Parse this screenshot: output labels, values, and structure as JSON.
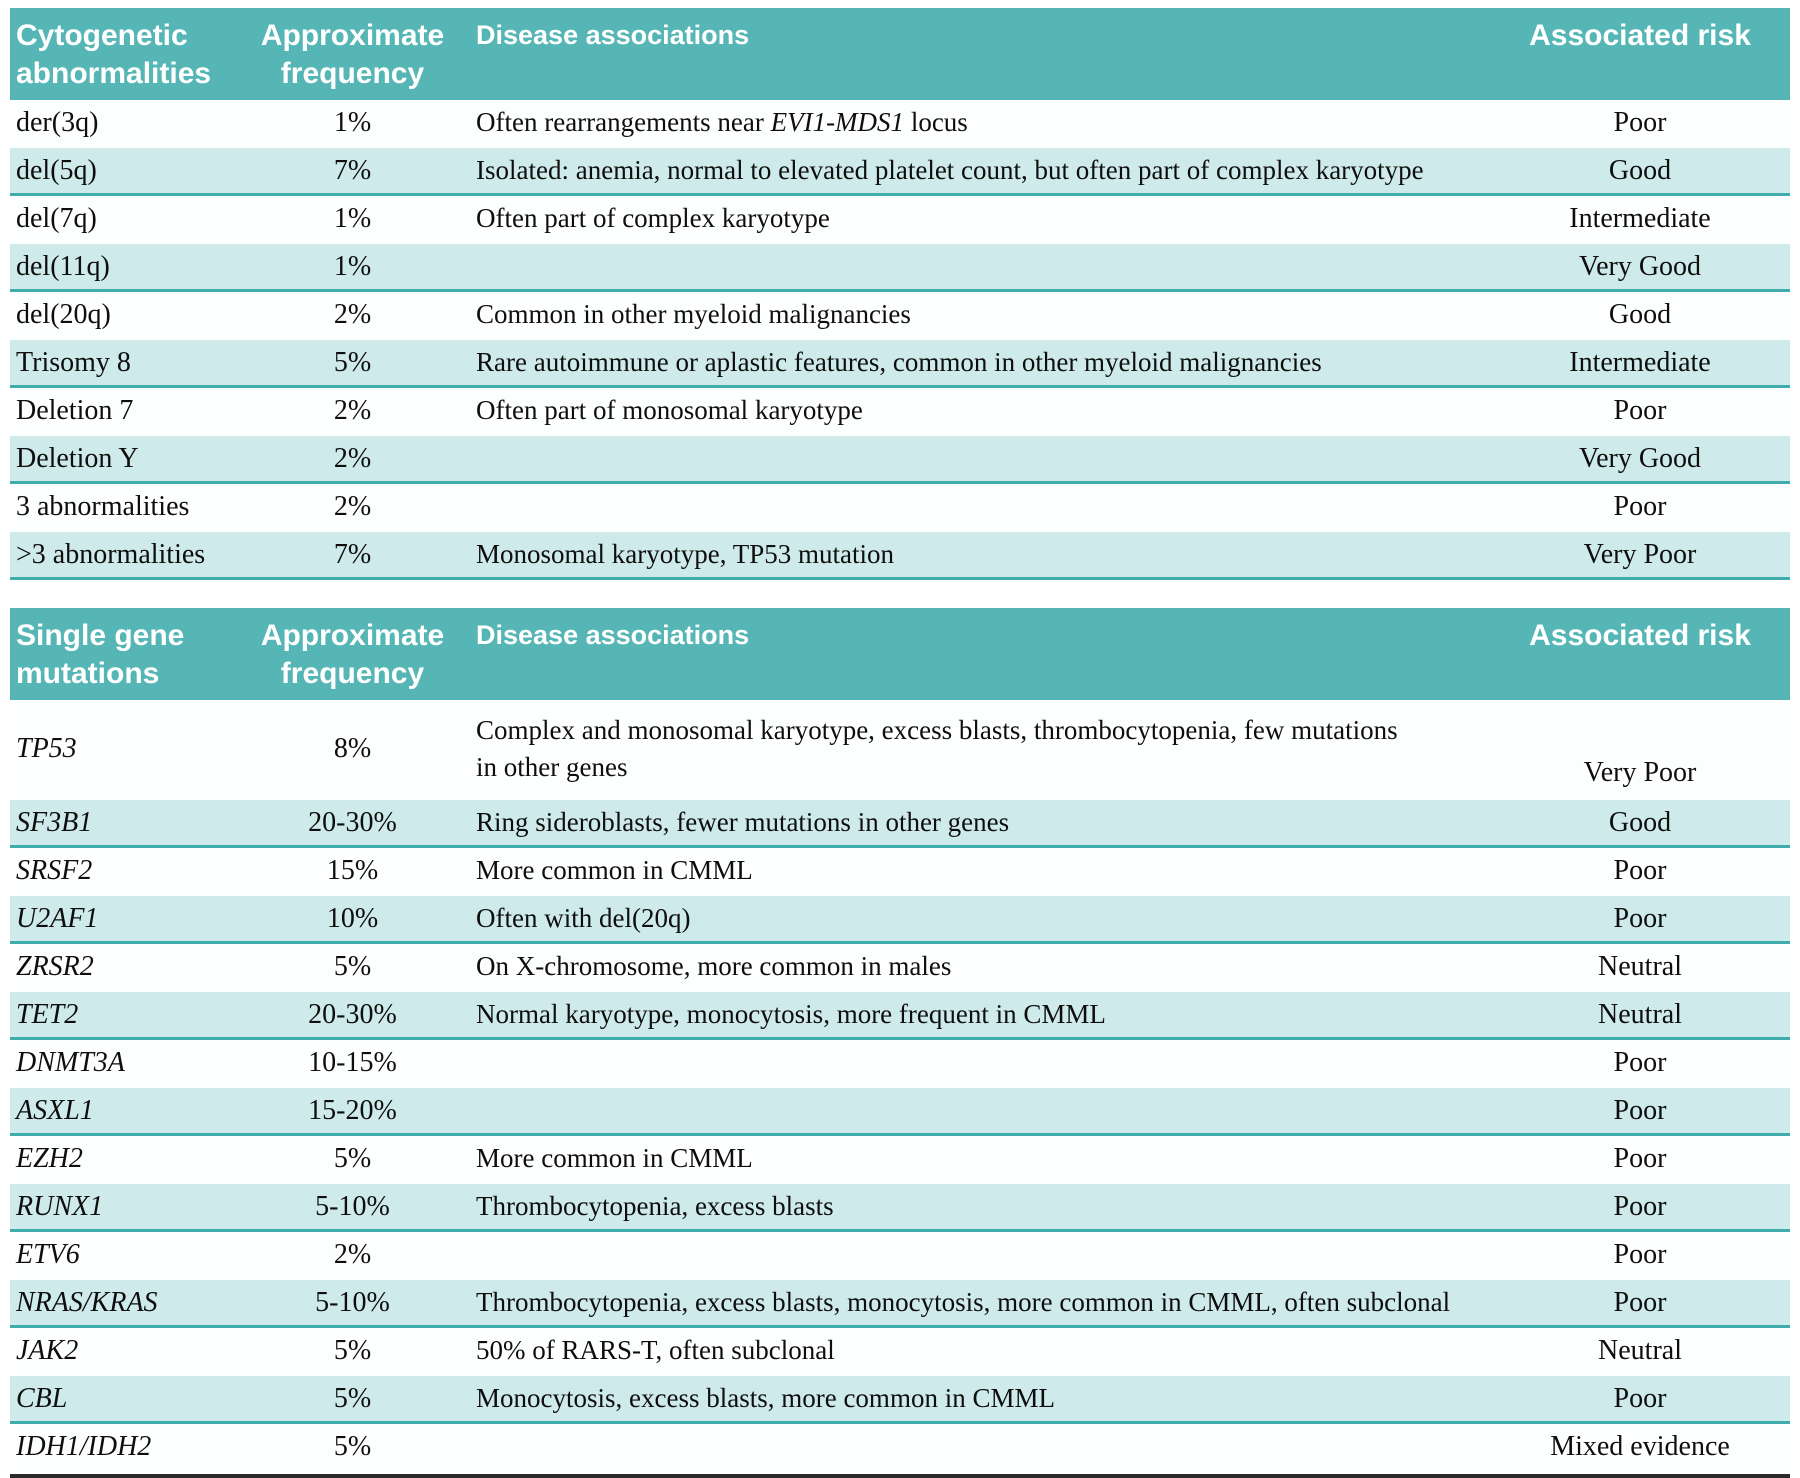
{
  "colors": {
    "header_bg": "#56b6b6",
    "header_text": "#ffffff",
    "shaded_row_bg": "#cfeaea",
    "row_divider": "#41acac",
    "body_text": "#0e0e0e",
    "bottom_rule": "#2b2b2b"
  },
  "tables": [
    {
      "id": "cytogenetic-abnormalities",
      "headers": {
        "col1": "Cytogenetic\nabnormalities",
        "col2": "Approximate\nfrequency",
        "col3": "Disease associations",
        "col4": "Associated risk"
      },
      "name_style": "normal",
      "rows": [
        {
          "name": "der(3q)",
          "frequency": "1%",
          "association": [
            {
              "t": "Often rearrangements near "
            },
            {
              "t": "EVI1-MDS1",
              "i": true
            },
            {
              "t": " locus"
            }
          ],
          "risk": "Poor"
        },
        {
          "name": "del(5q)",
          "frequency": "7%",
          "association": "Isolated: anemia, normal to elevated platelet count, but often part of complex karyotype",
          "risk": "Good"
        },
        {
          "name": "del(7q)",
          "frequency": "1%",
          "association": "Often part of complex karyotype",
          "risk": "Intermediate"
        },
        {
          "name": "del(11q)",
          "frequency": "1%",
          "association": "",
          "risk": "Very Good"
        },
        {
          "name": "del(20q)",
          "frequency": "2%",
          "association": "Common in other myeloid malignancies",
          "risk": "Good"
        },
        {
          "name": "Trisomy 8",
          "frequency": "5%",
          "association": "Rare autoimmune or aplastic features, common in other myeloid malignancies",
          "risk": "Intermediate"
        },
        {
          "name": "Deletion 7",
          "frequency": "2%",
          "association": "Often part of monosomal karyotype",
          "risk": "Poor"
        },
        {
          "name": "Deletion Y",
          "frequency": "2%",
          "association": "",
          "risk": "Very Good"
        },
        {
          "name": "3 abnormalities",
          "frequency": "2%",
          "association": "",
          "risk": "Poor"
        },
        {
          "name": ">3 abnormalities",
          "frequency": "7%",
          "association": "Monosomal karyotype, TP53 mutation",
          "risk": "Very Poor"
        }
      ]
    },
    {
      "id": "single-gene-mutations",
      "headers": {
        "col1": "Single gene\nmutations",
        "col2": "Approximate\nfrequency",
        "col3": "Disease associations",
        "col4": "Associated risk"
      },
      "name_style": "italic",
      "rows": [
        {
          "name": "TP53",
          "frequency": "8%",
          "association": "Complex and monosomal karyotype, excess blasts, thrombocytopenia, few mutations\nin other genes",
          "risk": "Very Poor"
        },
        {
          "name": "SF3B1",
          "frequency": "20-30%",
          "association": "Ring sideroblasts, fewer mutations in other genes",
          "risk": "Good"
        },
        {
          "name": "SRSF2",
          "frequency": "15%",
          "association": "More common in CMML",
          "risk": "Poor"
        },
        {
          "name": "U2AF1",
          "frequency": "10%",
          "association": "Often with del(20q)",
          "risk": "Poor"
        },
        {
          "name": "ZRSR2",
          "frequency": "5%",
          "association": "On X-chromosome, more common in males",
          "risk": "Neutral"
        },
        {
          "name": "TET2",
          "frequency": "20-30%",
          "association": "Normal karyotype, monocytosis, more frequent in CMML",
          "risk": "Neutral"
        },
        {
          "name": "DNMT3A",
          "frequency": "10-15%",
          "association": "",
          "risk": "Poor"
        },
        {
          "name": "ASXL1",
          "frequency": "15-20%",
          "association": "",
          "risk": "Poor"
        },
        {
          "name": "EZH2",
          "frequency": "5%",
          "association": "More common in CMML",
          "risk": "Poor"
        },
        {
          "name": "RUNX1",
          "frequency": "5-10%",
          "association": "Thrombocytopenia, excess blasts",
          "risk": "Poor"
        },
        {
          "name": "ETV6",
          "frequency": "2%",
          "association": "",
          "risk": "Poor"
        },
        {
          "name": "NRAS/KRAS",
          "frequency": "5-10%",
          "association": "Thrombocytopenia, excess blasts, monocytosis, more common in CMML, often subclonal",
          "risk": "Poor"
        },
        {
          "name": "JAK2",
          "frequency": "5%",
          "association": "50% of RARS-T, often subclonal",
          "risk": "Neutral"
        },
        {
          "name": "CBL",
          "frequency": "5%",
          "association": "Monocytosis, excess blasts, more common in CMML",
          "risk": "Poor"
        },
        {
          "name": "IDH1/IDH2",
          "frequency": "5%",
          "association": "",
          "risk": "Mixed evidence"
        }
      ]
    }
  ]
}
